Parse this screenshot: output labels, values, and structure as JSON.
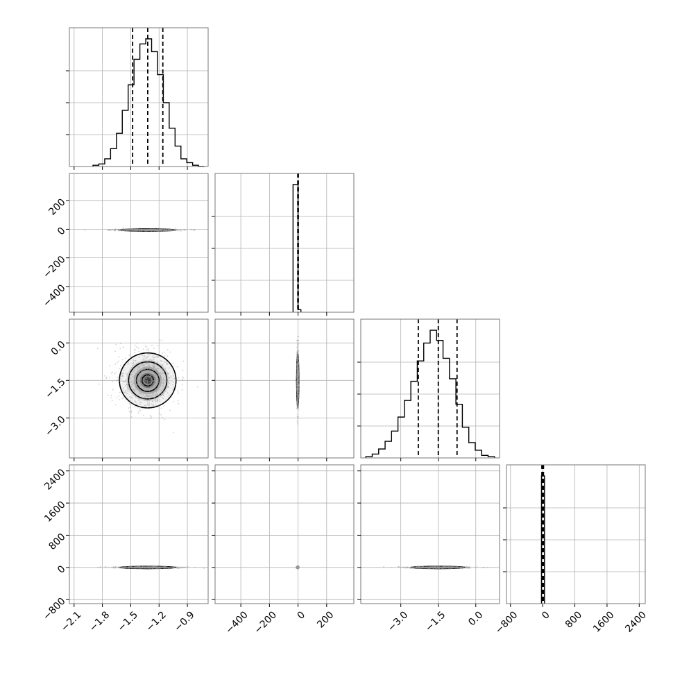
{
  "chart_data": {
    "type": "corner",
    "title": "",
    "parameters": [
      {
        "label": "",
        "range": [
          -2.15,
          -0.68
        ],
        "ticks": [
          -2.1,
          -1.8,
          -1.5,
          -1.2,
          -0.9
        ],
        "tick_labels": [
          "−2.1",
          "−1.8",
          "−1.5",
          "−1.2",
          "−0.9"
        ],
        "quantiles": [
          -1.48,
          -1.32,
          -1.16
        ]
      },
      {
        "label": "",
        "range": [
          -580,
          390
        ],
        "ticks": [
          -400,
          -200,
          0,
          200
        ],
        "tick_labels": [
          "−400",
          "−200",
          "0",
          "200"
        ],
        "quantiles": [
          -2,
          0,
          2
        ]
      },
      {
        "label": "",
        "range": [
          -4.6,
          0.95
        ],
        "ticks": [
          -3.0,
          -1.5,
          0.0
        ],
        "tick_labels": [
          "−3.0",
          "−1.5",
          "0.0"
        ],
        "quantiles": [
          -2.3,
          -1.5,
          -0.75
        ]
      },
      {
        "label": "",
        "range": [
          -900,
          2550
        ],
        "ticks": [
          -800,
          0,
          800,
          1600,
          2400
        ],
        "tick_labels": [
          "−800",
          "0",
          "800",
          "1600",
          "2400"
        ],
        "quantiles": [
          -20,
          0,
          20
        ]
      }
    ],
    "histograms": [
      {
        "param": 0,
        "values": [
          1,
          2,
          6,
          14,
          26,
          44,
          64,
          84,
          96,
          100,
          90,
          72,
          50,
          30,
          16,
          6,
          3,
          1,
          0
        ]
      },
      {
        "param": 1,
        "bins": [
          [
            -35,
            0,
            100
          ],
          [
            0,
            20,
            2
          ]
        ]
      },
      {
        "param": 2,
        "values": [
          1,
          3,
          7,
          13,
          21,
          32,
          45,
          60,
          76,
          90,
          100,
          92,
          78,
          62,
          42,
          24,
          12,
          6,
          2,
          1
        ]
      },
      {
        "param": 3,
        "bins": [
          [
            -30,
            0,
            100
          ],
          [
            0,
            45,
            100
          ]
        ]
      }
    ],
    "scatter_pairs": [
      {
        "x": 0,
        "y": 1,
        "center": [
          -1.32,
          -5
        ],
        "spread": [
          0.15,
          3
        ]
      },
      {
        "x": 0,
        "y": 2,
        "center": [
          -1.32,
          -1.5
        ],
        "spread": [
          0.15,
          0.55
        ]
      },
      {
        "x": 1,
        "y": 2,
        "center": [
          -2,
          -1.5
        ],
        "spread": [
          3,
          0.55
        ]
      },
      {
        "x": 0,
        "y": 3,
        "center": [
          -1.32,
          0
        ],
        "spread": [
          0.15,
          10
        ]
      },
      {
        "x": 1,
        "y": 3,
        "center": [
          -2,
          0
        ],
        "spread": [
          3,
          10
        ]
      },
      {
        "x": 2,
        "y": 3,
        "center": [
          -1.5,
          0
        ],
        "spread": [
          0.55,
          10
        ]
      }
    ]
  }
}
